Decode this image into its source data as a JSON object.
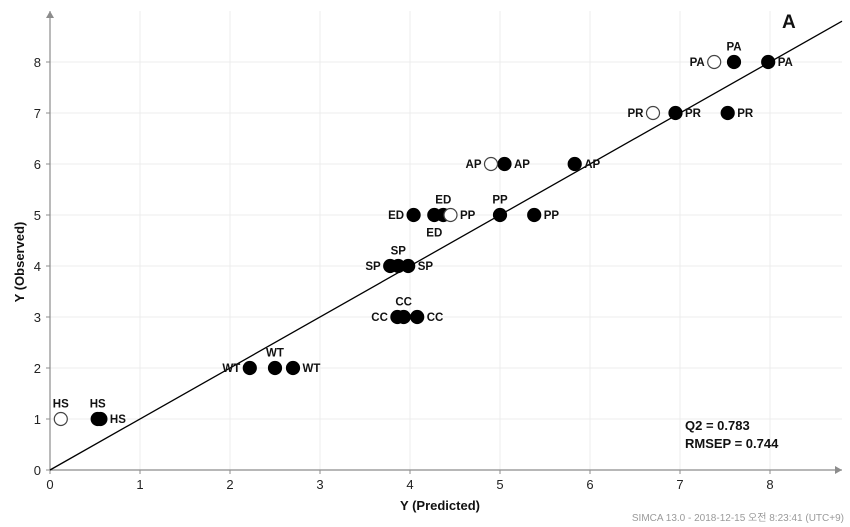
{
  "chart_data": {
    "type": "scatter",
    "panel_label": "A",
    "xlabel": "Y (Predicted)",
    "ylabel": "Y (Observed)",
    "xlim": [
      0,
      8.8
    ],
    "ylim": [
      0,
      9
    ],
    "xticks": [
      0,
      1,
      2,
      3,
      4,
      5,
      6,
      7,
      8
    ],
    "yticks": [
      0,
      1,
      2,
      3,
      4,
      5,
      6,
      7,
      8
    ],
    "fit_line": [
      [
        0,
        0
      ],
      [
        8.8,
        8.8
      ]
    ],
    "statistics": [
      "Q2 = 0.783",
      "RMSEP = 0.744"
    ],
    "series": [
      {
        "marker": "filled",
        "points": [
          {
            "x": 0.53,
            "y": 1,
            "label": "HS",
            "label_pos": "above"
          },
          {
            "x": 0.56,
            "y": 1,
            "label": "HS",
            "label_pos": "right"
          },
          {
            "x": 2.22,
            "y": 2,
            "label": "WT",
            "label_pos": "left"
          },
          {
            "x": 2.5,
            "y": 2,
            "label": "WT",
            "label_pos": "above"
          },
          {
            "x": 2.7,
            "y": 2,
            "label": "WT",
            "label_pos": "right"
          },
          {
            "x": 3.86,
            "y": 3,
            "label": "CC",
            "label_pos": "left"
          },
          {
            "x": 3.93,
            "y": 3,
            "label": "CC",
            "label_pos": "above"
          },
          {
            "x": 4.08,
            "y": 3,
            "label": "CC",
            "label_pos": "right"
          },
          {
            "x": 3.78,
            "y": 4,
            "label": "SP",
            "label_pos": "left"
          },
          {
            "x": 3.87,
            "y": 4,
            "label": "SP",
            "label_pos": "above"
          },
          {
            "x": 3.98,
            "y": 4,
            "label": "SP",
            "label_pos": "right"
          },
          {
            "x": 4.04,
            "y": 5,
            "label": "ED",
            "label_pos": "left"
          },
          {
            "x": 4.27,
            "y": 5,
            "label": "ED",
            "label_pos": "below"
          },
          {
            "x": 4.37,
            "y": 5,
            "label": "ED",
            "label_pos": "above"
          },
          {
            "x": 5.0,
            "y": 5,
            "label": "PP",
            "label_pos": "above"
          },
          {
            "x": 5.38,
            "y": 5,
            "label": "PP",
            "label_pos": "right"
          },
          {
            "x": 5.05,
            "y": 6,
            "label": "AP",
            "label_pos": "right"
          },
          {
            "x": 5.83,
            "y": 6,
            "label": "AP",
            "label_pos": "right"
          },
          {
            "x": 6.95,
            "y": 7,
            "label": "PR",
            "label_pos": "right"
          },
          {
            "x": 7.53,
            "y": 7,
            "label": "PR",
            "label_pos": "right"
          },
          {
            "x": 7.6,
            "y": 8,
            "label": "PA",
            "label_pos": "above"
          },
          {
            "x": 7.98,
            "y": 8,
            "label": "PA",
            "label_pos": "right"
          }
        ]
      },
      {
        "marker": "open",
        "points": [
          {
            "x": 0.12,
            "y": 1,
            "label": "HS",
            "label_pos": "above"
          },
          {
            "x": 4.45,
            "y": 5,
            "label": "PP",
            "label_pos": "right"
          },
          {
            "x": 4.9,
            "y": 6,
            "label": "AP",
            "label_pos": "left"
          },
          {
            "x": 6.7,
            "y": 7,
            "label": "PR",
            "label_pos": "left"
          },
          {
            "x": 7.38,
            "y": 8,
            "label": "PA",
            "label_pos": "left"
          }
        ]
      }
    ]
  },
  "footer": "SIMCA 13.0 - 2018-12-15 오전 8:23:41 (UTC+9)"
}
